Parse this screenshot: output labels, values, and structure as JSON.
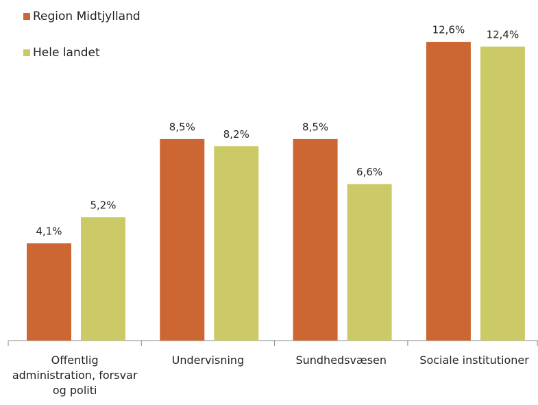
{
  "chart_data": {
    "type": "bar",
    "categories": [
      "Offentlig administration, forsvar og politi",
      "Undervisning",
      "Sundhedsvæsen",
      "Sociale institutioner"
    ],
    "series": [
      {
        "name": "Region Midtjylland",
        "color": "#cc6633",
        "values": [
          4.1,
          8.5,
          8.5,
          12.6
        ],
        "value_labels": [
          "4,1%",
          "8,5%",
          "8,5%",
          "12,6%"
        ]
      },
      {
        "name": "Hele landet",
        "color": "#cbca66",
        "values": [
          5.2,
          8.2,
          6.6,
          12.4
        ],
        "value_labels": [
          "5,2%",
          "8,2%",
          "6,6%",
          "12,4%"
        ]
      }
    ],
    "legend": "top-left"
  }
}
